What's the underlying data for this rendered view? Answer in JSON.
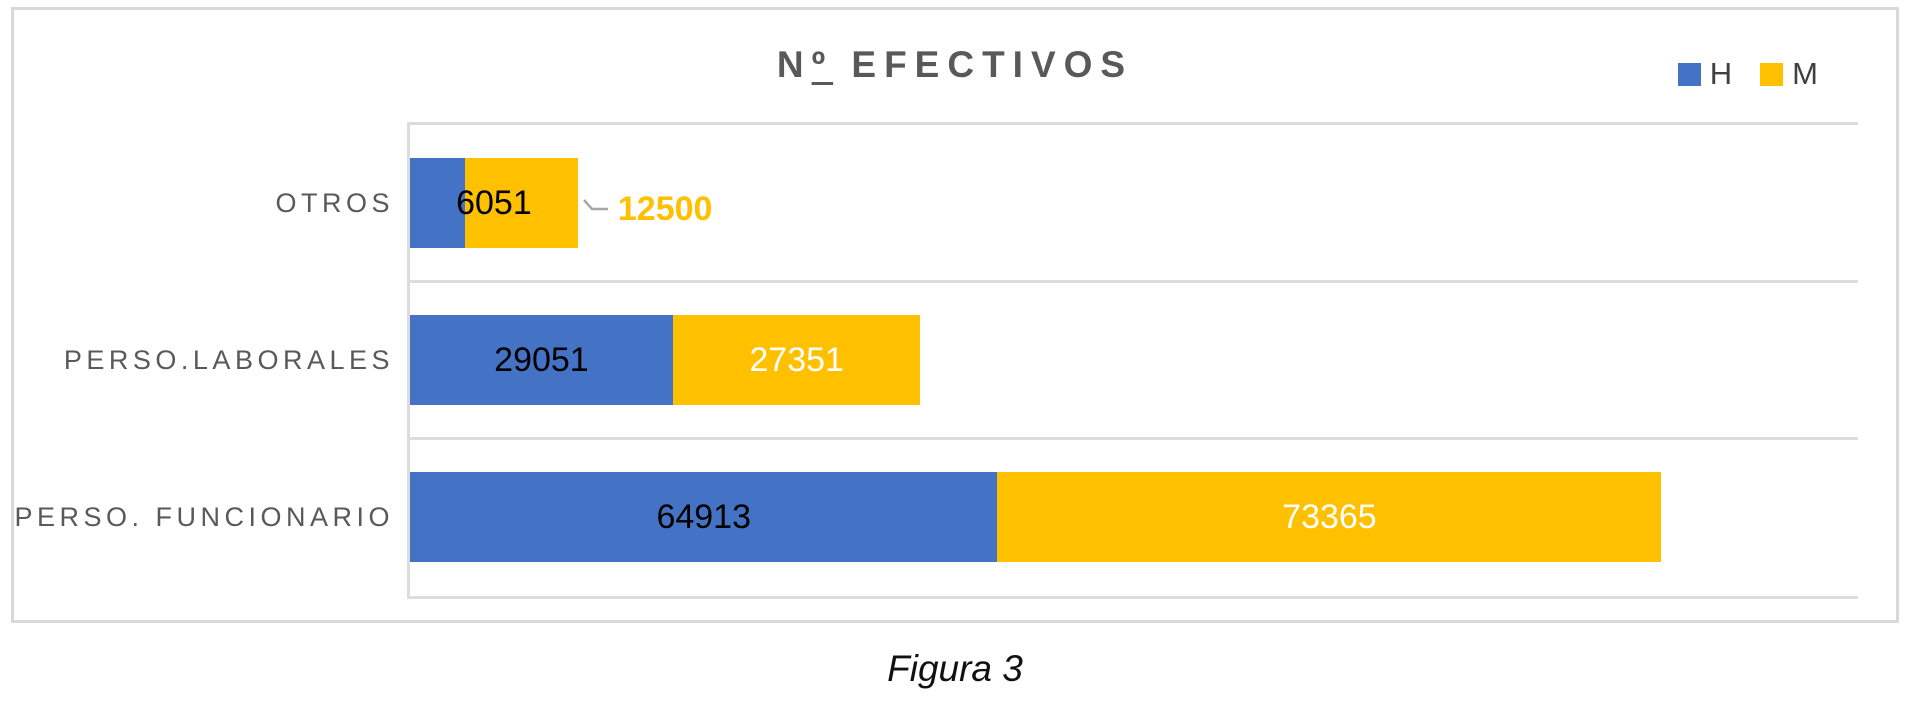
{
  "chart_data": {
    "type": "bar",
    "orientation": "horizontal",
    "stacked": true,
    "title": "Nº EFECTIVOS",
    "categories": [
      "OTROS",
      "PERSO.LABORALES",
      "PERSO. FUNCIONARIO"
    ],
    "series": [
      {
        "name": "H",
        "color": "#4472C4",
        "values": [
          6051,
          29051,
          64913
        ],
        "labels": [
          "6051",
          "29051",
          "64913"
        ],
        "label_colors": [
          "#000000",
          "#000000",
          "#000000"
        ],
        "label_placement": [
          "center-of-bar",
          "center",
          "center"
        ]
      },
      {
        "name": "M",
        "color": "#FFC000",
        "values": [
          12500,
          27351,
          73365
        ],
        "labels": [
          "12500",
          "27351",
          "73365"
        ],
        "label_colors": [
          "#FFC000",
          "#FFFFFF",
          "#FFFFFF"
        ],
        "label_placement": [
          "outside-end",
          "center",
          "center"
        ]
      }
    ],
    "xlim": [
      0,
      160000
    ],
    "legend_position": "top-right",
    "legend_entries": [
      "H",
      "M"
    ],
    "grid": "horizontal-category-separators",
    "axis_tick_labels_visible": false
  },
  "caption": "Figura 3",
  "colors": {
    "series_h": "#4472C4",
    "series_m": "#FFC000",
    "title_text": "#595959",
    "category_text": "#595959",
    "legend_text": "#404040",
    "frame_border": "#D9D9D9",
    "plot_border": "#DCDCDC",
    "leader_line": "#A6A6A6",
    "outside_label": "#FFC000"
  }
}
